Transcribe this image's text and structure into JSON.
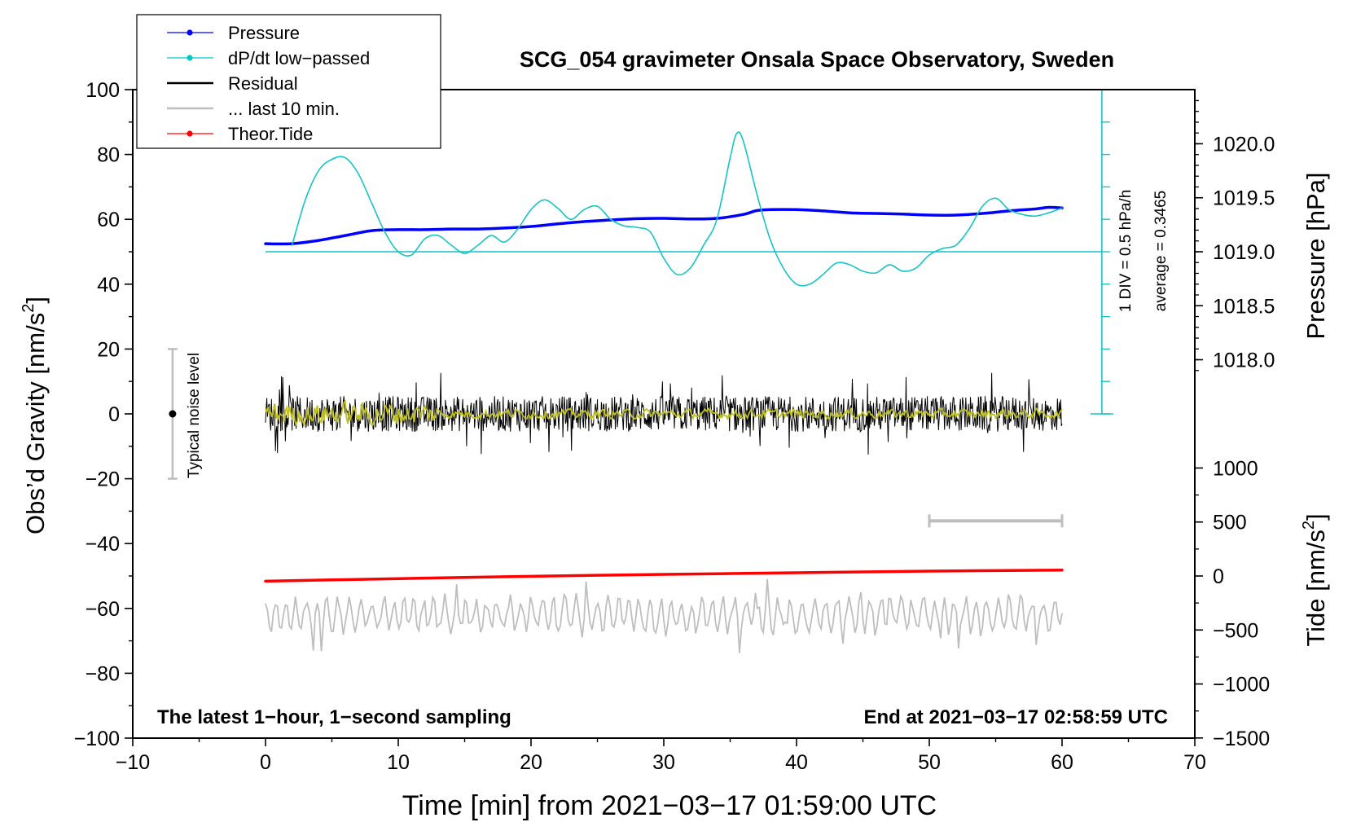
{
  "chart_data": {
    "type": "line",
    "title": "SCG_054 gravimeter Onsala Space Observatory, Sweden",
    "xlabel": "Time [min] from 2021−03−17 01:59:00 UTC",
    "ylabel": "Obs’d Gravity [nm/s",
    "ylabel_sup": "2",
    "ylabel_end": "]",
    "right_label_pressure": "Pressure [hPa]",
    "right_label_tide": "Tide [nm/s",
    "right_label_tide_sup": "2",
    "right_label_tide_end": "]",
    "xlim": [
      -10,
      70
    ],
    "ylim": [
      -100,
      100
    ],
    "x_ticks": [
      -10,
      0,
      10,
      20,
      30,
      40,
      50,
      60,
      70
    ],
    "x_tick_labels": [
      "−10",
      "0",
      "10",
      "20",
      "30",
      "40",
      "50",
      "60",
      "70"
    ],
    "y_ticks": [
      -100,
      -80,
      -60,
      -40,
      -20,
      0,
      20,
      40,
      60,
      80,
      100
    ],
    "y_tick_labels": [
      "−100",
      "−80",
      "−60",
      "−40",
      "−20",
      "0",
      "20",
      "40",
      "60",
      "80",
      "100"
    ],
    "pressure_ticks": [
      1018.0,
      1018.5,
      1019.0,
      1019.5,
      1020.0
    ],
    "pressure_tick_labels": [
      "1018.0",
      "1018.5",
      "1019.0",
      "1019.5",
      "1020.0"
    ],
    "pressure_axis_map": {
      "p1": 1019.0,
      "g1": 50,
      "p2": 1020.0,
      "g2": 83.3
    },
    "tide_ticks": [
      -1500,
      -1000,
      -500,
      0,
      500,
      1000
    ],
    "tide_tick_labels": [
      "−1500",
      "−1000",
      "−500",
      "0",
      "500",
      "1000"
    ],
    "tide_axis_map": {
      "t1": 0,
      "g1": -50,
      "t2": 1000,
      "g2": -16.7
    },
    "legend": [
      {
        "label": "Pressure",
        "color": "#0000ff",
        "marker": true
      },
      {
        "label": "dP/dt low−passed",
        "color": "#00c8c8",
        "marker": true
      },
      {
        "label": "Residual",
        "color": "#000000",
        "marker": false
      },
      {
        "label": "... last 10 min.",
        "color": "#bebebe",
        "marker": false
      },
      {
        "label": "Theor.Tide",
        "color": "#ff0000",
        "marker": true
      }
    ],
    "annotations": {
      "bottom_left": "The latest 1−hour, 1−second sampling",
      "bottom_right": "End at 2021−03−17 02:58:59 UTC",
      "noise_label": "Typical noise level",
      "div_label": "1 DIV = 0.5 hPa/h",
      "average_label": "average = 0.3465"
    },
    "noise_bar": {
      "x": -7,
      "ymin": -20,
      "ymax": 20,
      "center": 0
    },
    "last10_bar": {
      "xmin": 50,
      "xmax": 60,
      "y": -33
    },
    "dpdt_axis": {
      "x": 63,
      "ymin": 0,
      "ymax": 100,
      "baseline": 50,
      "x_start": 0,
      "divisions": 10
    },
    "series": [
      {
        "name": "Pressure",
        "color": "#0000ff",
        "width": 3.5,
        "x": [
          0,
          2,
          4,
          6,
          8,
          10,
          12,
          14,
          16,
          18,
          20,
          22,
          24,
          26,
          28,
          30,
          32,
          34,
          36,
          37,
          38,
          40,
          42,
          44,
          46,
          48,
          50,
          52,
          54,
          56,
          58,
          59,
          60
        ],
        "y": [
          52.5,
          52.5,
          53.5,
          55,
          56.5,
          56.8,
          56.8,
          57,
          57,
          57.3,
          57.8,
          58.6,
          59.3,
          59.8,
          60.2,
          60.3,
          60.1,
          60.3,
          61.5,
          62.7,
          63,
          63,
          62.6,
          62,
          61.8,
          61.6,
          61.3,
          61.3,
          61.8,
          62.6,
          63.2,
          63.7,
          63.5
        ]
      },
      {
        "name": "dP/dt low-passed",
        "color": "#17c4c4",
        "width": 1.6,
        "x": [
          2,
          3,
          4,
          5,
          6,
          7,
          8,
          9,
          10,
          11,
          12,
          13,
          14,
          15,
          16,
          17,
          18,
          19,
          20,
          21,
          22,
          23,
          24,
          25,
          26,
          27,
          28,
          29,
          30,
          31,
          32,
          33,
          34,
          35,
          35.5,
          36,
          37,
          38,
          39,
          40,
          41,
          42,
          43,
          44,
          45,
          46,
          47,
          48,
          49,
          50,
          51,
          52,
          53,
          54,
          55,
          56,
          57,
          58,
          59,
          60
        ],
        "y": [
          52,
          66,
          75,
          78.5,
          79,
          74,
          65,
          56,
          50,
          49,
          54,
          55,
          52,
          49.5,
          52,
          55,
          53,
          57,
          63,
          66,
          63.5,
          60,
          63,
          64,
          60,
          58,
          57.5,
          56,
          48,
          43,
          45,
          52,
          60,
          79,
          86.5,
          84,
          68,
          54,
          45,
          40,
          40,
          43,
          46.5,
          46,
          44,
          43.5,
          46,
          44,
          45,
          49,
          51,
          52,
          57,
          64,
          66.5,
          63,
          61.5,
          61,
          62,
          63.5
        ]
      },
      {
        "name": "Theor.Tide",
        "color": "#ff0000",
        "width": 3.5,
        "x": [
          0,
          10,
          20,
          30,
          40,
          50,
          60
        ],
        "y": [
          -51.6,
          -50.8,
          -50.1,
          -49.5,
          -49.0,
          -48.5,
          -48.2
        ]
      }
    ],
    "residual": {
      "color": "#000000",
      "x_range": [
        0,
        60
      ],
      "amplitude": 5.5,
      "spike_amplitude": 13
    },
    "residual_smooth": {
      "color": "#c0c020",
      "x_range": [
        0,
        60
      ]
    },
    "last10_trace": {
      "color": "#bebebe",
      "x_range": [
        0,
        60
      ],
      "center": -62,
      "amplitude": 5.5
    }
  }
}
